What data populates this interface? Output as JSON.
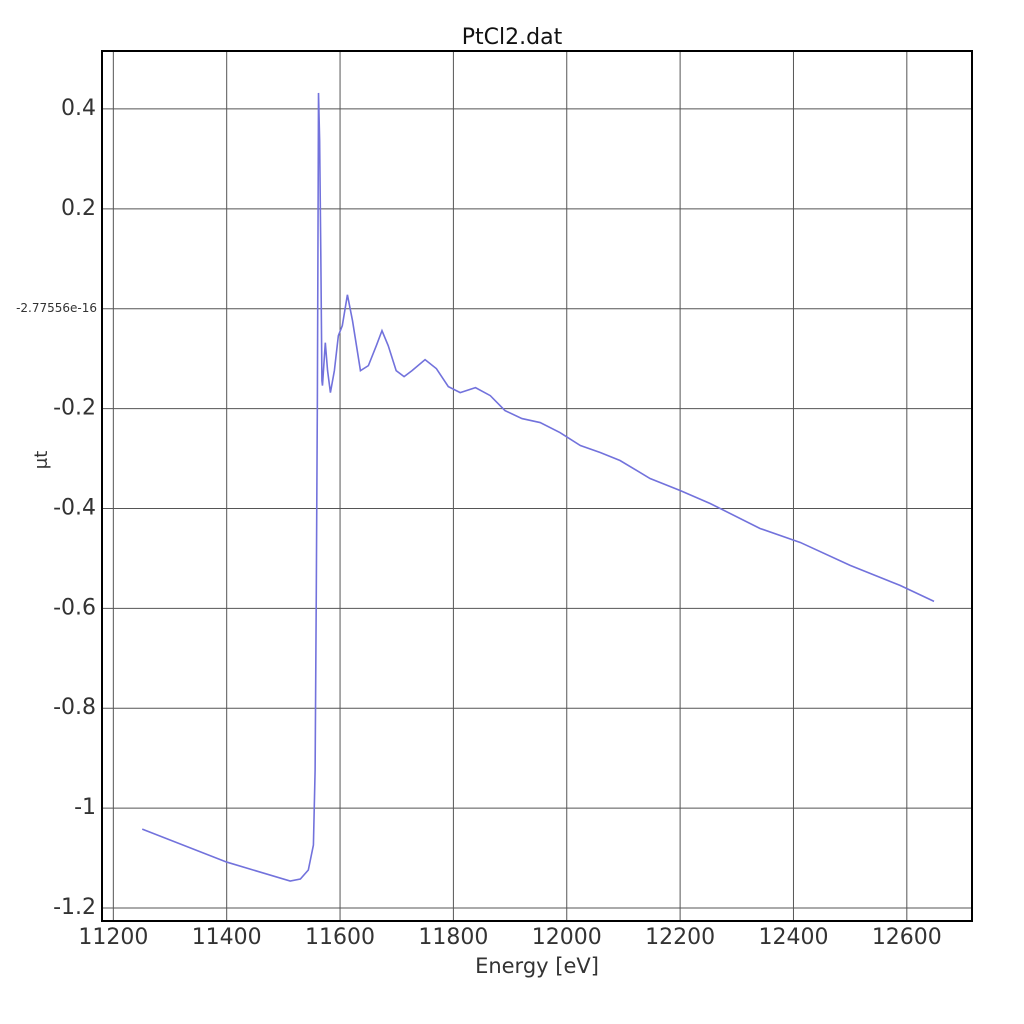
{
  "chart_data": {
    "type": "line",
    "title": "PtCl2.dat",
    "x_label": "Energy [eV]",
    "y_label": "μt",
    "x": [
      11251,
      11400,
      11512,
      11530,
      11544,
      11553,
      11556,
      11558,
      11560,
      11561,
      11562,
      11564,
      11566,
      11568,
      11569,
      11574,
      11578,
      11583,
      11590,
      11597,
      11604,
      11613,
      11622,
      11636,
      11650,
      11664,
      11674,
      11685,
      11699,
      11713,
      11727,
      11750,
      11770,
      11791,
      11812,
      11839,
      11865,
      11891,
      11921,
      11953,
      11988,
      12024,
      12059,
      12094,
      12147,
      12200,
      12253,
      12341,
      12412,
      12500,
      12588,
      12648
    ],
    "series": [
      {
        "name": "PtCl2.dat",
        "color": "#7272dc",
        "values": [
          -1.042,
          -1.108,
          -1.146,
          -1.142,
          -1.124,
          -1.074,
          -0.924,
          -0.584,
          -0.184,
          0.116,
          0.432,
          0.336,
          0.116,
          -0.144,
          -0.154,
          -0.068,
          -0.124,
          -0.168,
          -0.124,
          -0.054,
          -0.034,
          0.028,
          -0.024,
          -0.124,
          -0.114,
          -0.074,
          -0.044,
          -0.074,
          -0.124,
          -0.136,
          -0.124,
          -0.102,
          -0.12,
          -0.156,
          -0.168,
          -0.158,
          -0.174,
          -0.204,
          -0.22,
          -0.228,
          -0.248,
          -0.274,
          -0.288,
          -0.304,
          -0.34,
          -0.364,
          -0.39,
          -0.44,
          -0.468,
          -0.514,
          -0.554,
          -0.586
        ]
      }
    ],
    "xlim": [
      11180,
      12715
    ],
    "ylim": [
      -1.226,
      0.516
    ],
    "xticks": [
      11200,
      11400,
      11600,
      11800,
      12000,
      12200,
      12400,
      12600
    ],
    "yticks": [
      0.4,
      0.2,
      {
        "value": -2.77556e-16,
        "label": "-2.77556e-16"
      },
      -0.2,
      -0.4,
      -0.6,
      -0.8,
      -1,
      -1.2
    ],
    "grid": true
  }
}
